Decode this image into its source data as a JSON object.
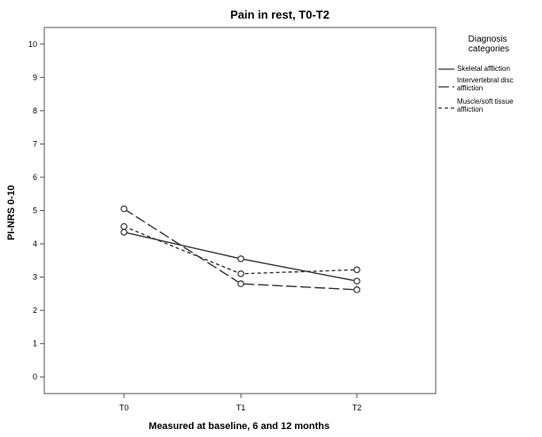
{
  "chart_data": {
    "type": "line",
    "title": "Pain in rest, T0-T2",
    "xlabel": "Measured at baseline, 6 and 12 months",
    "ylabel": "PI-NRS 0-10",
    "categories": [
      "T0",
      "T1",
      "T2"
    ],
    "y_ticks": [
      "0",
      "1",
      "2",
      "3",
      "4",
      "5",
      "6",
      "7",
      "8",
      "9",
      "10"
    ],
    "ylim": [
      -0.5,
      10.5
    ],
    "grid": false,
    "legend": {
      "title": "Diagnosis categories",
      "placement": "right"
    },
    "series": [
      {
        "name": "Skeletal affliction",
        "values": [
          4.35,
          3.55,
          2.88
        ],
        "line_style": "solid"
      },
      {
        "name": "Intervertebral disc affliction",
        "values": [
          5.05,
          2.8,
          2.62
        ],
        "line_style": "long-dash"
      },
      {
        "name": "Muscle/soft tissue affliction",
        "values": [
          4.52,
          3.1,
          3.22
        ],
        "line_style": "short-dash"
      }
    ],
    "colors": {
      "line": "#333333",
      "frame": "#555555",
      "plot_background": "#ffffff"
    }
  }
}
